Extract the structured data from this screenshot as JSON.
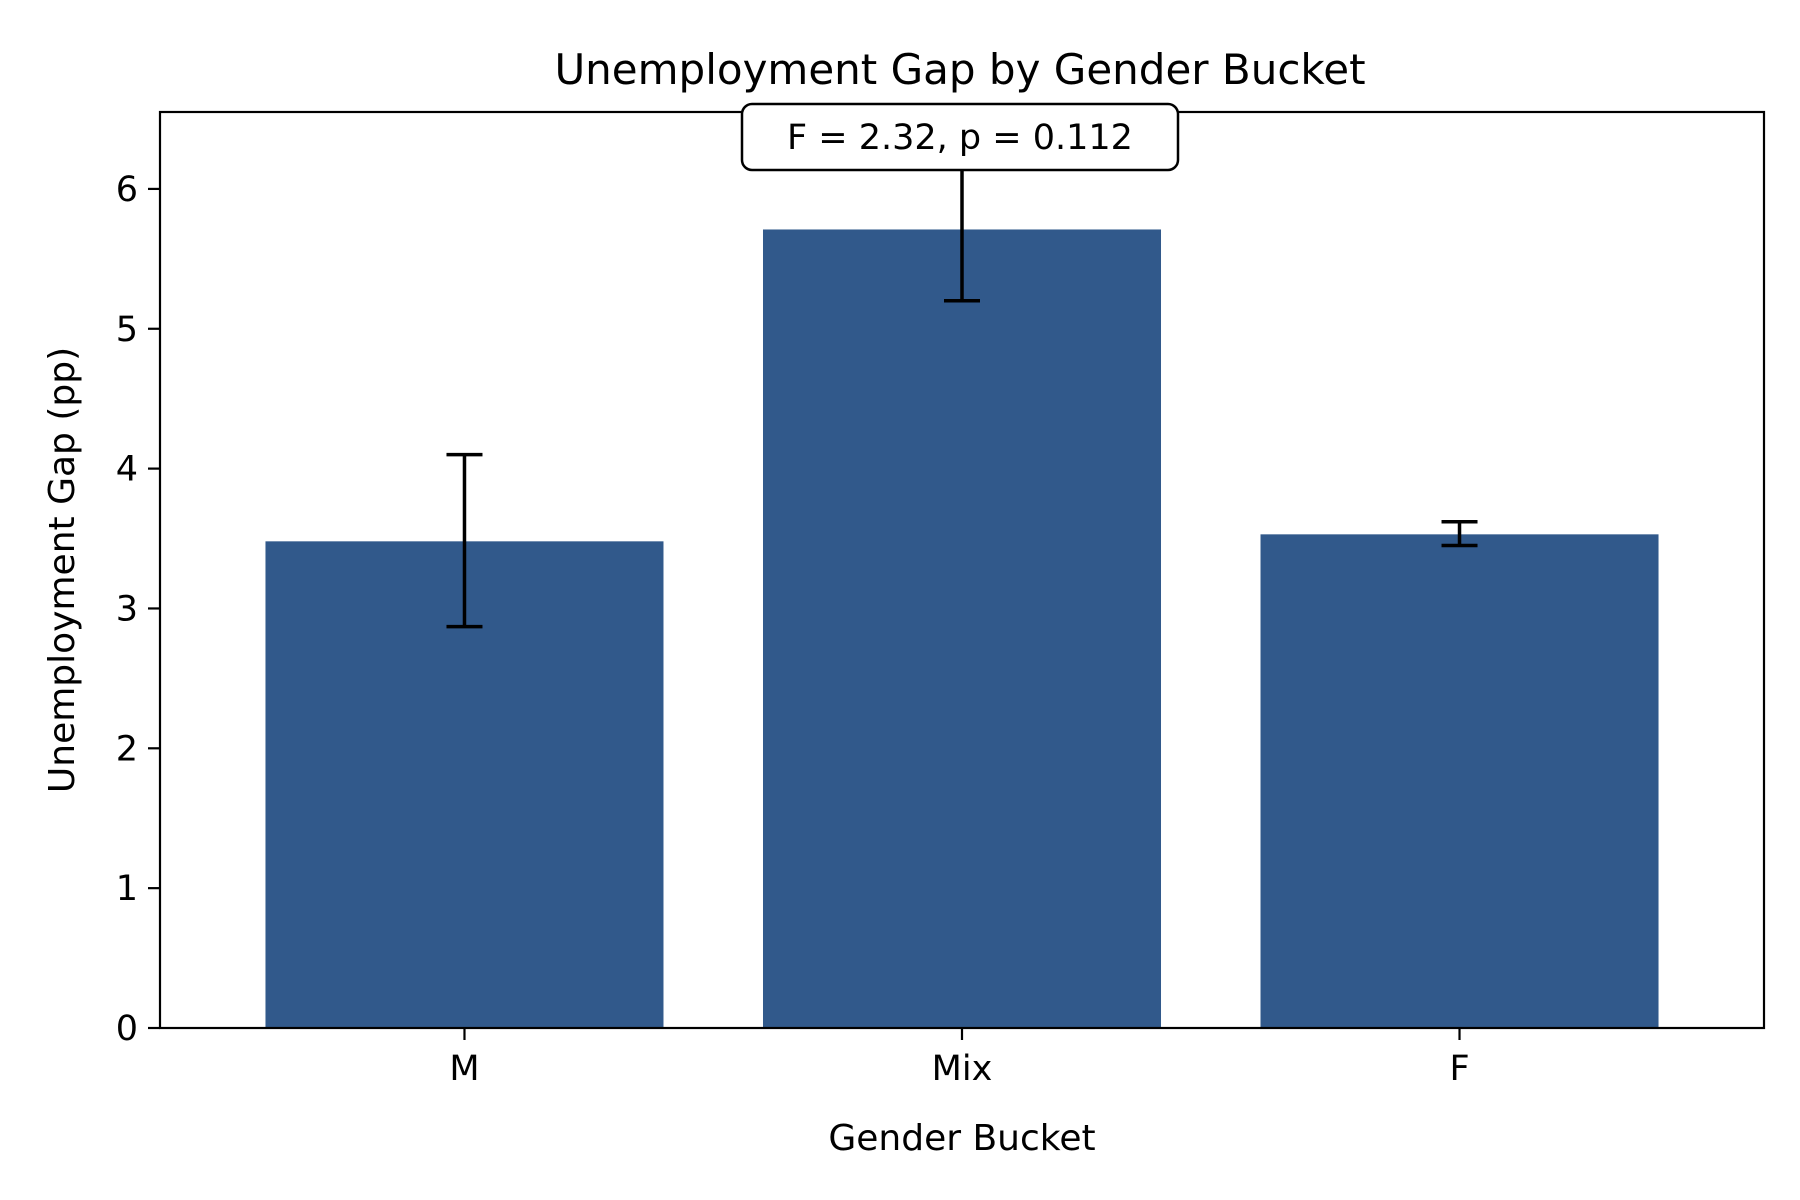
{
  "chart_data": {
    "type": "bar",
    "title": "Unemployment Gap by Gender Bucket",
    "xlabel": "Gender Bucket",
    "ylabel": "Unemployment Gap (pp)",
    "categories": [
      "M",
      "Mix",
      "F"
    ],
    "values": [
      3.48,
      5.71,
      3.53
    ],
    "error_low": [
      2.87,
      5.2,
      3.45
    ],
    "error_high": [
      4.1,
      6.22,
      3.62
    ],
    "ylim": [
      0,
      6.55
    ],
    "yticks": [
      0,
      1,
      2,
      3,
      4,
      5,
      6
    ],
    "grid": false,
    "annotation": "F = 2.32, p = 0.112",
    "colors": {
      "bar": "#31598b",
      "error": "#000000",
      "frame": "#000000"
    }
  }
}
